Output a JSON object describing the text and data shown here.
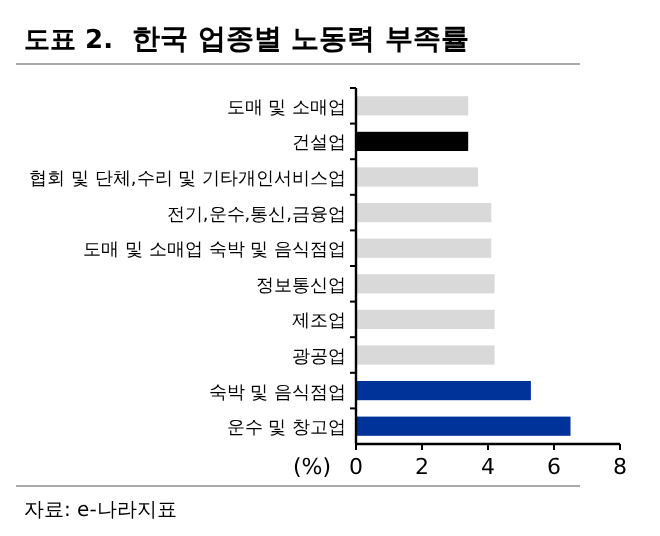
{
  "chart_data": {
    "type": "bar",
    "orientation": "horizontal",
    "title": "한국 업종별 노동력 부족률",
    "xlabel": "(%)",
    "annotations": [
      "도표 2.",
      "자료: e-나라지표"
    ],
    "categories": [
      "도매 및 소매업",
      "건설업",
      "협회 및 단체,수리 및 기타개인서비스업",
      "전기,운수,통신,금융업",
      "도매 및 소매업 숙박 및 음식점업",
      "정보통신업",
      "제조업",
      "광공업",
      "숙박 및 음식점업",
      "운수 및 창고업"
    ],
    "values": [
      3.4,
      3.4,
      3.7,
      4.1,
      4.1,
      4.2,
      4.2,
      4.2,
      5.3,
      6.5
    ],
    "colors": [
      "#d9d9d9",
      "#000000",
      "#d9d9d9",
      "#d9d9d9",
      "#d9d9d9",
      "#d9d9d9",
      "#d9d9d9",
      "#d9d9d9",
      "#003399",
      "#003399"
    ],
    "xlim": [
      0,
      8
    ],
    "xticks": [
      0,
      2,
      4,
      6,
      8
    ],
    "grid": false
  }
}
